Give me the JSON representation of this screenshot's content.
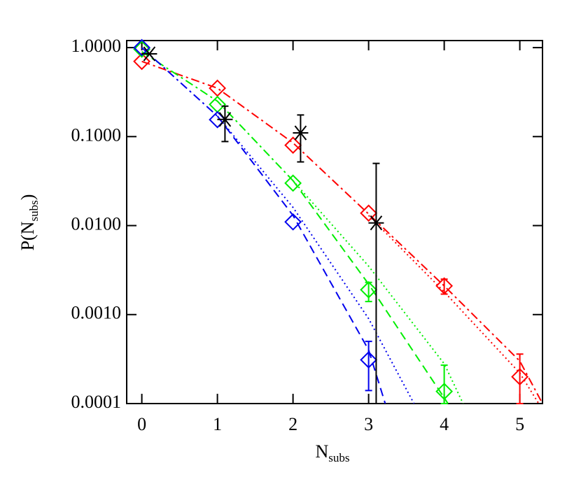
{
  "chart_data": {
    "type": "scatter",
    "x_label": {
      "main": "N",
      "sub": "subs"
    },
    "y_label": {
      "before": "P(N",
      "sub": "subs",
      "after": ")"
    },
    "xlim": [
      -0.2,
      5.3
    ],
    "xticks": [
      0,
      1,
      2,
      3,
      4,
      5
    ],
    "ylim": [
      0.0001,
      1.2
    ],
    "yscale": "log",
    "yticks": [
      {
        "value": 1,
        "label": "1.0000"
      },
      {
        "value": 0.1,
        "label": "0.1000"
      },
      {
        "value": 0.01,
        "label": "0.0100"
      },
      {
        "value": 0.001,
        "label": "0.0010"
      },
      {
        "value": 0.0001,
        "label": "0.0001"
      }
    ],
    "series": [
      {
        "color": "#ff0000",
        "marker": "diamond",
        "x": [
          0,
          1,
          2,
          3,
          4,
          5
        ],
        "values": [
          0.7,
          0.35,
          0.08,
          0.0138,
          0.0021,
          0.0002
        ],
        "err_low": [
          null,
          null,
          null,
          null,
          0.0017,
          0.0001
        ],
        "err_high": [
          null,
          null,
          null,
          null,
          0.0025,
          0.00036
        ]
      },
      {
        "color": "#00ee00",
        "marker": "diamond",
        "x": [
          0,
          1,
          2,
          3,
          4
        ],
        "values": [
          0.96,
          0.23,
          0.03,
          0.0019,
          0.000137
        ],
        "err_low": [
          null,
          null,
          null,
          0.0014,
          0.0001
        ],
        "err_high": [
          null,
          null,
          null,
          0.0023,
          0.00027
        ]
      },
      {
        "color": "#0000ee",
        "marker": "diamond",
        "x": [
          0,
          1,
          2,
          3
        ],
        "values": [
          1.0,
          0.155,
          0.011,
          0.00031
        ],
        "err_low": [
          null,
          null,
          null,
          0.00014
        ],
        "err_high": [
          null,
          null,
          null,
          0.0005
        ]
      },
      {
        "color": "#000000",
        "marker": "asterisk",
        "x": [
          0.1,
          1.1,
          2.1,
          3.1
        ],
        "values": [
          0.85,
          0.156,
          0.11,
          0.0107
        ],
        "err_low": [
          null,
          0.088,
          0.052,
          0.0001
        ],
        "err_high": [
          null,
          0.22,
          0.175,
          0.05
        ]
      }
    ],
    "lines": [
      {
        "color": "#ff0000",
        "style": "dashdot",
        "x": [
          0,
          1,
          2,
          3,
          4,
          5,
          5.3
        ],
        "values": [
          0.7,
          0.35,
          0.085,
          0.0135,
          0.0021,
          0.0003,
          0.0001
        ]
      },
      {
        "color": "#ff0000",
        "style": "dotted",
        "x": [
          3,
          4,
          5,
          5.25
        ],
        "values": [
          0.013,
          0.0018,
          0.00022,
          0.0001
        ]
      },
      {
        "color": "#00ee00",
        "style": "dashdot",
        "x": [
          0,
          1,
          2
        ],
        "values": [
          0.9,
          0.25,
          0.032
        ]
      },
      {
        "color": "#00ee00",
        "style": "dotted",
        "x": [
          2,
          3,
          4,
          4.25
        ],
        "values": [
          0.032,
          0.0035,
          0.00028,
          0.0001
        ]
      },
      {
        "color": "#00ee00",
        "style": "dashed",
        "x": [
          2,
          3,
          4.05
        ],
        "values": [
          0.032,
          0.0022,
          0.0001
        ]
      },
      {
        "color": "#0000ee",
        "style": "dashdot",
        "x": [
          0,
          1
        ],
        "values": [
          1.0,
          0.17
        ]
      },
      {
        "color": "#0000ee",
        "style": "dotted",
        "x": [
          1,
          2,
          3,
          3.6
        ],
        "values": [
          0.17,
          0.016,
          0.0009,
          0.0001
        ]
      },
      {
        "color": "#0000ee",
        "style": "dashed",
        "x": [
          1,
          2,
          3,
          3.22
        ],
        "values": [
          0.17,
          0.013,
          0.0004,
          0.0001
        ]
      }
    ]
  }
}
